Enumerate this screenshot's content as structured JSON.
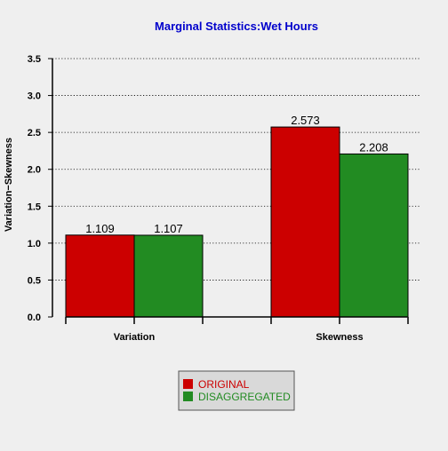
{
  "chart_data": {
    "type": "bar",
    "title": "Marginal Statistics:Wet Hours",
    "xlabel": "",
    "ylabel": "Variation−Skewness",
    "categories": [
      "Variation",
      "Skewness"
    ],
    "series": [
      {
        "name": "ORIGINAL",
        "values": [
          1.109,
          2.573
        ],
        "labels": [
          "1.109",
          "2.573"
        ],
        "color": "#cc0000"
      },
      {
        "name": "DISAGGREGATED",
        "values": [
          1.107,
          2.208
        ],
        "labels": [
          "1.107",
          "2.208"
        ],
        "color": "#228b22"
      }
    ],
    "ylim": [
      0,
      3.5
    ],
    "yticks": [
      "0.0",
      "0.5",
      "1.0",
      "1.5",
      "2.0",
      "2.5",
      "3.0",
      "3.5"
    ],
    "grid": true,
    "legend_position": "bottom-center",
    "title_color": "#0000cc",
    "background": "#efefef"
  }
}
